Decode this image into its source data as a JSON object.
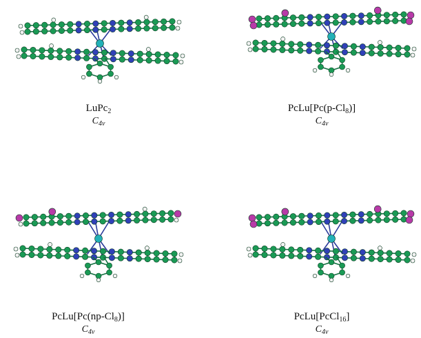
{
  "colors": {
    "carbon": "#1a9a55",
    "nitrogen": "#3040b8",
    "hydrogen": "#f2f2f2",
    "chlorine": "#b83aa8",
    "lutetium": "#22b0b8",
    "bond": "#2a3a9a"
  },
  "molecules": [
    {
      "id": "lupc2",
      "formula_parts": [
        "LuPc",
        "2",
        ""
      ],
      "symmetry_main": "C",
      "symmetry_sub": "4v",
      "top_sub": "H",
      "bottom_sub": "H"
    },
    {
      "id": "pclu-pc-p-cl8",
      "formula_parts": [
        "PcLu[Pc(p-Cl",
        "8",
        ")]"
      ],
      "symmetry_main": "C",
      "symmetry_sub": "4v",
      "top_sub": "Cl",
      "bottom_sub": "H"
    },
    {
      "id": "pclu-pc-np-cl8",
      "formula_parts": [
        "PcLu[Pc(np-Cl",
        "8",
        ")]"
      ],
      "symmetry_main": "C",
      "symmetry_sub": "4v",
      "top_sub": "mixed",
      "bottom_sub": "H"
    },
    {
      "id": "pclu-pccl16",
      "formula_parts": [
        "PcLu[PcCl",
        "16",
        "]"
      ],
      "symmetry_main": "C",
      "symmetry_sub": "4v",
      "top_sub": "Cl",
      "bottom_sub": "H"
    }
  ]
}
